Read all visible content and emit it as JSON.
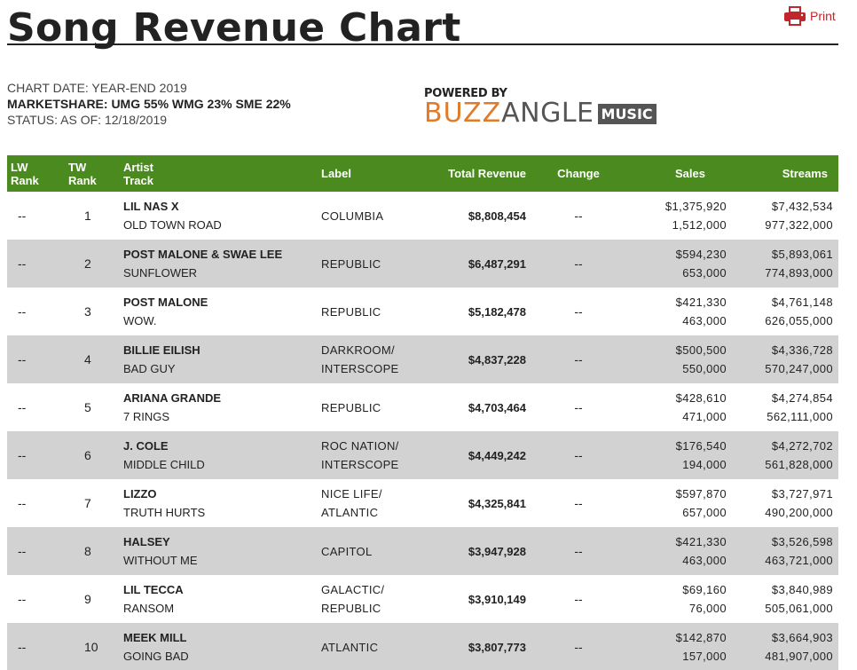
{
  "page": {
    "title": "Song Revenue Chart",
    "print_label": "Print",
    "chart_date": "CHART DATE: YEAR-END 2019",
    "marketshare": "MARKETSHARE: UMG 55% WMG 23% SME 22%",
    "status": "STATUS: AS OF: 12/18/2019"
  },
  "logo": {
    "powered_by": "POWERED BY",
    "buzz": "BUZZ",
    "angle": "ANGLE",
    "music": "MUSIC"
  },
  "colors": {
    "header_bg": "#4a8a1f",
    "alt_row": "#d2d2d2",
    "print_red": "#c0272d",
    "buzz_orange": "#e07b2a"
  },
  "table": {
    "headers": {
      "lw_rank_1": "LW",
      "lw_rank_2": "Rank",
      "tw_rank_1": "TW",
      "tw_rank_2": "Rank",
      "artist": "Artist",
      "track": "Track",
      "label": "Label",
      "total_revenue": "Total Revenue",
      "change": "Change",
      "sales": "Sales",
      "streams": "Streams"
    },
    "rows": [
      {
        "lw": "--",
        "tw": "1",
        "artist": "LIL NAS X",
        "track": "OLD TOWN ROAD",
        "label1": "COLUMBIA",
        "label2": "",
        "revenue": "$8,808,454",
        "change": "--",
        "sales_rev": "$1,375,920",
        "sales_units": "1,512,000",
        "streams_rev": "$7,432,534",
        "streams_units": "977,322,000"
      },
      {
        "lw": "--",
        "tw": "2",
        "artist": "POST MALONE & SWAE LEE",
        "track": "SUNFLOWER",
        "label1": "REPUBLIC",
        "label2": "",
        "revenue": "$6,487,291",
        "change": "--",
        "sales_rev": "$594,230",
        "sales_units": "653,000",
        "streams_rev": "$5,893,061",
        "streams_units": "774,893,000"
      },
      {
        "lw": "--",
        "tw": "3",
        "artist": "POST MALONE",
        "track": "WOW.",
        "label1": "REPUBLIC",
        "label2": "",
        "revenue": "$5,182,478",
        "change": "--",
        "sales_rev": "$421,330",
        "sales_units": "463,000",
        "streams_rev": "$4,761,148",
        "streams_units": "626,055,000"
      },
      {
        "lw": "--",
        "tw": "4",
        "artist": "BILLIE EILISH",
        "track": "BAD GUY",
        "label1": "DARKROOM/",
        "label2": "INTERSCOPE",
        "revenue": "$4,837,228",
        "change": "--",
        "sales_rev": "$500,500",
        "sales_units": "550,000",
        "streams_rev": "$4,336,728",
        "streams_units": "570,247,000"
      },
      {
        "lw": "--",
        "tw": "5",
        "artist": "ARIANA GRANDE",
        "track": "7 RINGS",
        "label1": "REPUBLIC",
        "label2": "",
        "revenue": "$4,703,464",
        "change": "--",
        "sales_rev": "$428,610",
        "sales_units": "471,000",
        "streams_rev": "$4,274,854",
        "streams_units": "562,111,000"
      },
      {
        "lw": "--",
        "tw": "6",
        "artist": "J. COLE",
        "track": "MIDDLE CHILD",
        "label1": "ROC NATION/",
        "label2": "INTERSCOPE",
        "revenue": "$4,449,242",
        "change": "--",
        "sales_rev": "$176,540",
        "sales_units": "194,000",
        "streams_rev": "$4,272,702",
        "streams_units": "561,828,000"
      },
      {
        "lw": "--",
        "tw": "7",
        "artist": "LIZZO",
        "track": "TRUTH HURTS",
        "label1": "NICE LIFE/",
        "label2": "ATLANTIC",
        "revenue": "$4,325,841",
        "change": "--",
        "sales_rev": "$597,870",
        "sales_units": "657,000",
        "streams_rev": "$3,727,971",
        "streams_units": "490,200,000"
      },
      {
        "lw": "--",
        "tw": "8",
        "artist": "HALSEY",
        "track": "WITHOUT ME",
        "label1": "CAPITOL",
        "label2": "",
        "revenue": "$3,947,928",
        "change": "--",
        "sales_rev": "$421,330",
        "sales_units": "463,000",
        "streams_rev": "$3,526,598",
        "streams_units": "463,721,000"
      },
      {
        "lw": "--",
        "tw": "9",
        "artist": "LIL TECCA",
        "track": "RANSOM",
        "label1": "GALACTIC/",
        "label2": "REPUBLIC",
        "revenue": "$3,910,149",
        "change": "--",
        "sales_rev": "$69,160",
        "sales_units": "76,000",
        "streams_rev": "$3,840,989",
        "streams_units": "505,061,000"
      },
      {
        "lw": "--",
        "tw": "10",
        "artist": "MEEK MILL",
        "track": "GOING BAD",
        "label1": "ATLANTIC",
        "label2": "",
        "revenue": "$3,807,773",
        "change": "--",
        "sales_rev": "$142,870",
        "sales_units": "157,000",
        "streams_rev": "$3,664,903",
        "streams_units": "481,907,000"
      }
    ]
  }
}
